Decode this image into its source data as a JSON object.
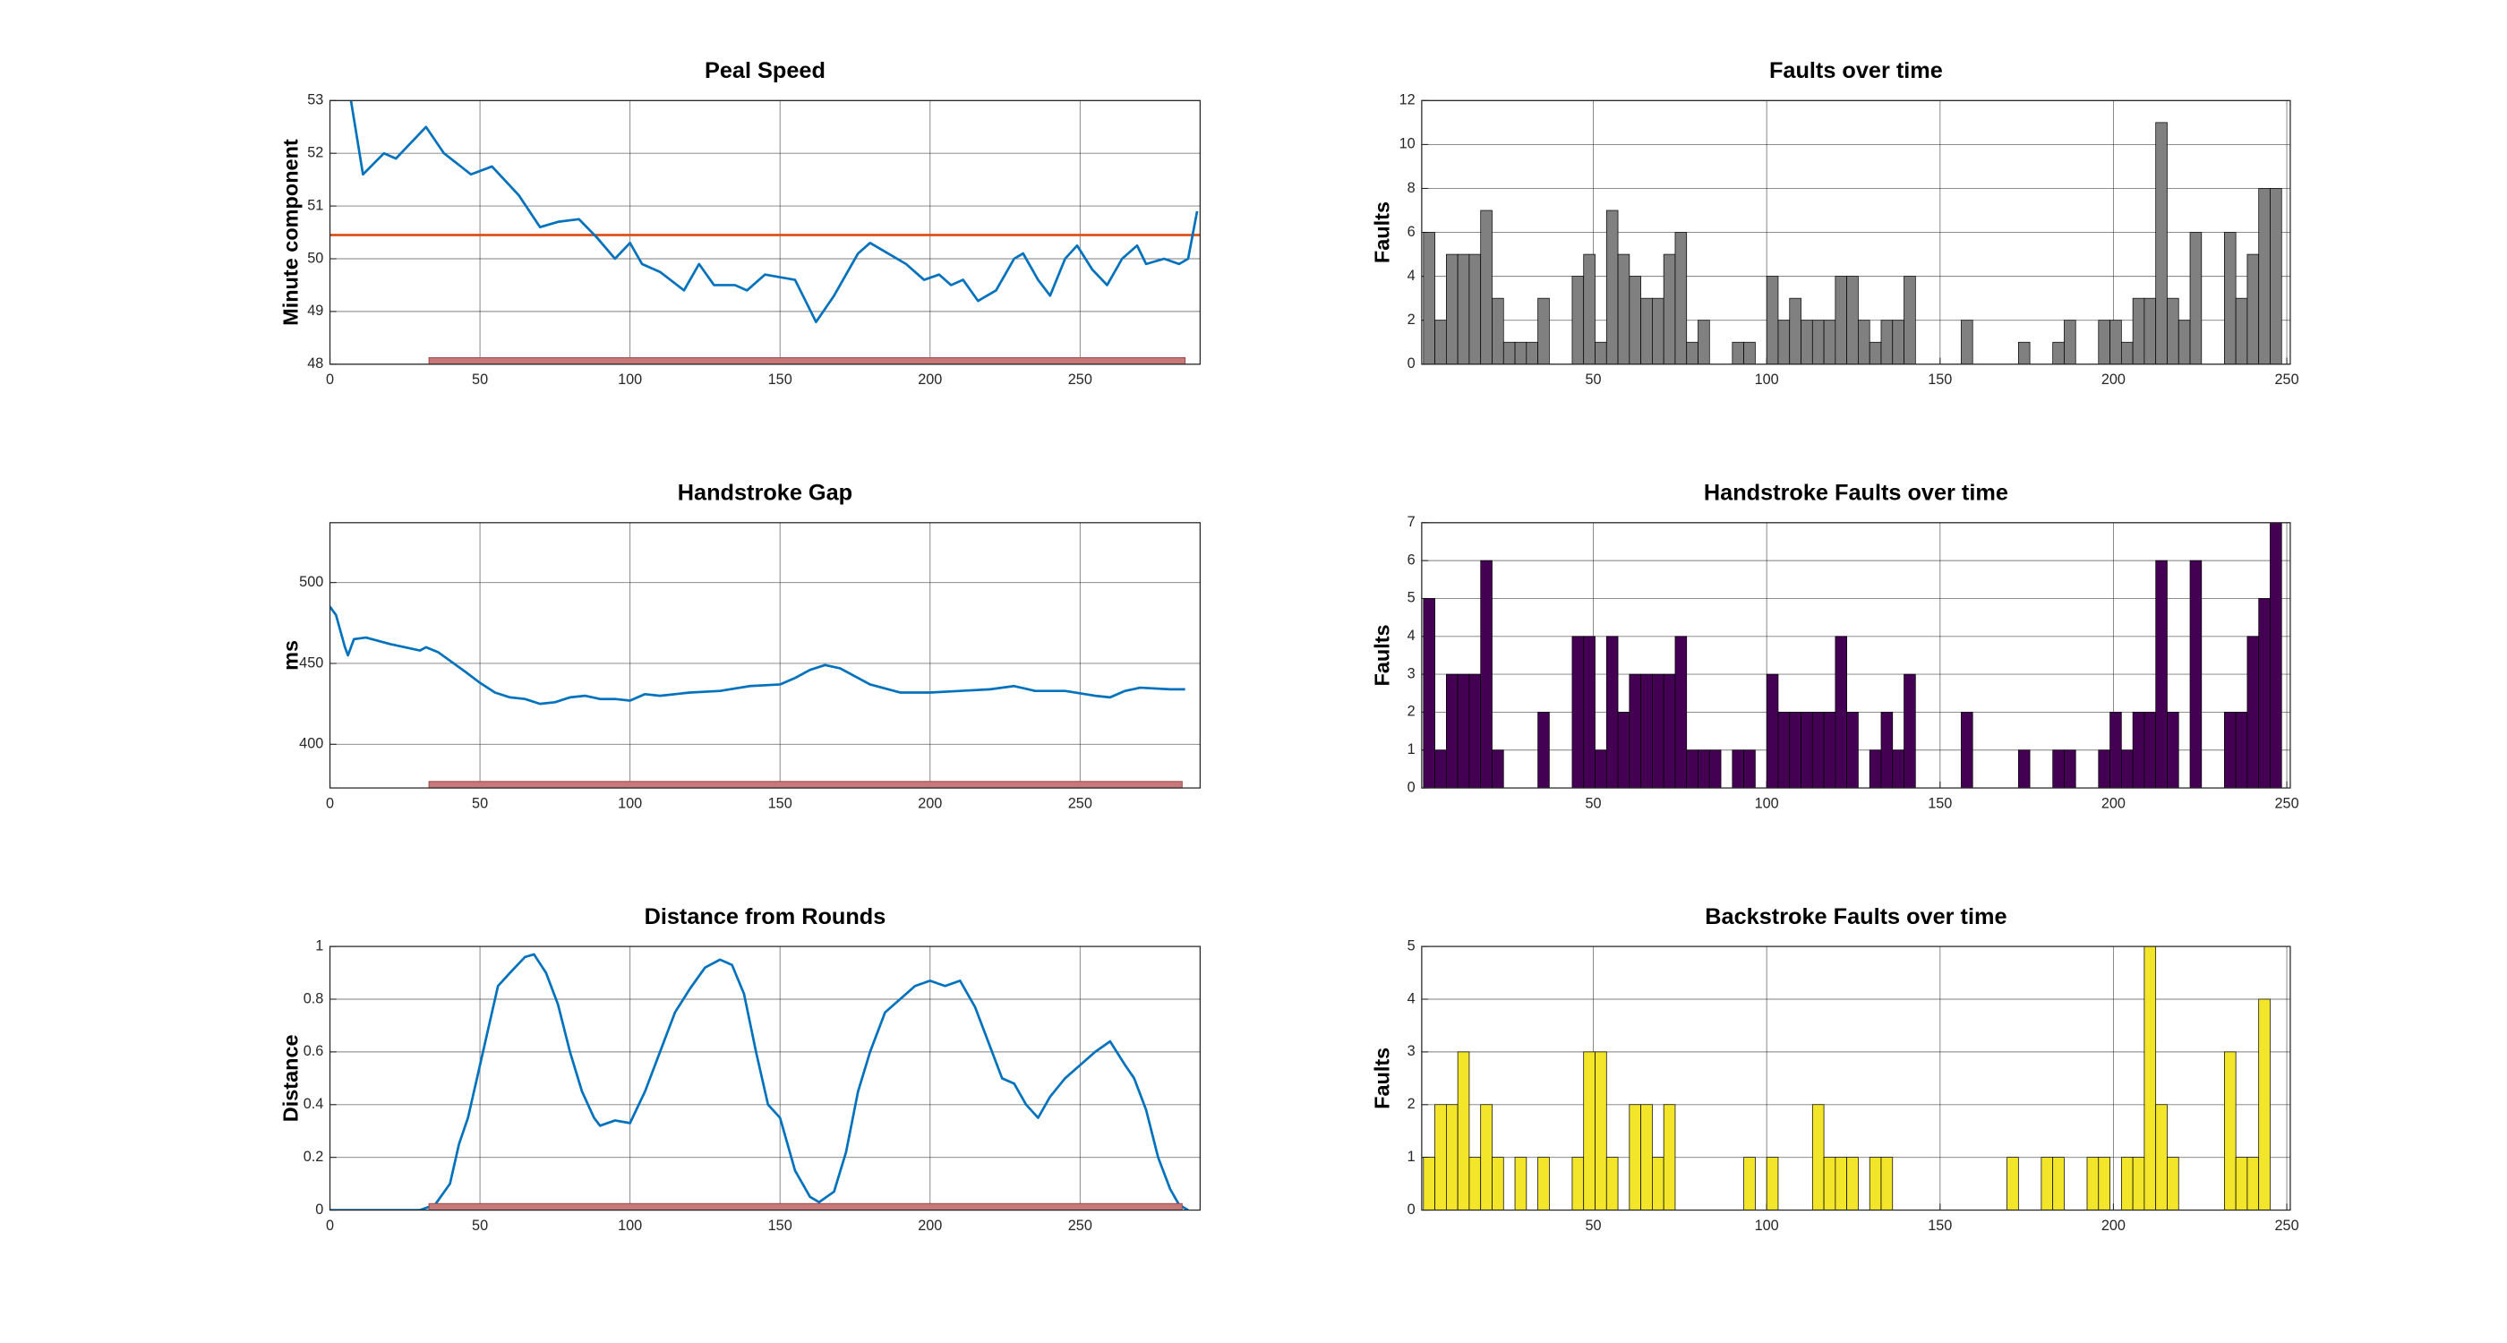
{
  "chart_data": [
    {
      "type": "line",
      "title": "Peal Speed",
      "ylabel": "Minute component",
      "color": "#0072bd",
      "x": [
        7,
        11,
        18,
        22,
        32,
        38,
        47,
        54,
        63,
        70,
        76,
        83,
        89,
        95,
        100,
        104,
        110,
        118,
        123,
        128,
        135,
        139,
        145,
        155,
        162,
        168,
        176,
        180,
        186,
        192,
        198,
        203,
        207,
        211,
        216,
        222,
        228,
        231,
        236,
        240,
        245,
        249,
        254,
        259,
        264,
        269,
        272,
        278,
        283,
        286,
        289
      ],
      "values": [
        53,
        51.6,
        52,
        51.9,
        52.5,
        52,
        51.6,
        51.75,
        51.2,
        50.6,
        50.7,
        50.75,
        50.4,
        50,
        50.3,
        49.9,
        49.75,
        49.4,
        49.9,
        49.5,
        49.5,
        49.4,
        49.7,
        49.6,
        48.8,
        49.3,
        50.1,
        50.3,
        50.1,
        49.9,
        49.6,
        49.7,
        49.5,
        49.6,
        49.2,
        49.4,
        50,
        50.1,
        49.6,
        49.3,
        50,
        50.25,
        49.8,
        49.5,
        50,
        50.25,
        49.9,
        50,
        49.9,
        50,
        50.9
      ],
      "reference_line": 50.45,
      "reference_color": "#d95319",
      "highlight_range": [
        33,
        285
      ],
      "highlight_color": "#c87878",
      "xlim": [
        0,
        290
      ],
      "xticks": [
        0,
        50,
        100,
        150,
        200,
        250
      ],
      "ylim": [
        48,
        53
      ],
      "yticks": [
        48,
        49,
        50,
        51,
        52,
        53
      ],
      "grid": true
    },
    {
      "type": "histogram",
      "title": "Faults over time",
      "ylabel": "Faults",
      "color": "#808080",
      "bins": [
        1,
        4.3,
        7.6,
        10.9,
        14.2,
        17.5,
        20.8,
        24.1,
        27.4,
        30.7,
        34,
        37.3,
        40.6,
        43.9,
        47.2,
        50.5,
        53.8,
        57.1,
        60.4,
        63.7,
        67,
        70.3,
        73.6,
        76.9,
        80.2,
        83.5,
        86.8,
        90.1,
        93.4,
        96.7,
        100,
        103.3,
        106.6,
        109.9,
        113.2,
        116.5,
        119.8,
        123.1,
        126.4,
        129.7,
        133,
        136.3,
        139.6,
        142.9,
        146.2,
        149.5,
        152.8,
        156.1,
        159.4,
        162.7,
        166,
        169.3,
        172.6,
        175.9,
        179.2,
        182.5,
        185.8,
        189.1,
        192.4,
        195.7,
        199,
        202.3,
        205.6,
        208.9,
        212.2,
        215.5,
        218.8,
        222.1,
        225.4,
        228.7,
        232,
        235.3,
        238.6,
        241.9,
        245.2,
        248.5
      ],
      "values": [
        6,
        2,
        5,
        5,
        5,
        7,
        3,
        1,
        1,
        1,
        3,
        0,
        0,
        4,
        5,
        1,
        7,
        5,
        4,
        3,
        3,
        5,
        6,
        1,
        2,
        0,
        0,
        1,
        1,
        0,
        4,
        2,
        3,
        2,
        2,
        2,
        4,
        4,
        2,
        1,
        2,
        2,
        4,
        0,
        0,
        0,
        0,
        2,
        0,
        0,
        0,
        0,
        1,
        0,
        0,
        1,
        2,
        0,
        0,
        2,
        2,
        1,
        3,
        3,
        11,
        3,
        2,
        6,
        0,
        0,
        6,
        3,
        5,
        8,
        8
      ],
      "xlim": [
        0.5,
        251
      ],
      "xticks": [
        50,
        100,
        150,
        200,
        250
      ],
      "ylim": [
        0,
        12
      ],
      "yticks": [
        0,
        2,
        4,
        6,
        8,
        10,
        12
      ],
      "grid": true
    },
    {
      "type": "line",
      "title": "Handstroke Gap",
      "ylabel": "ms",
      "color": "#0072bd",
      "x": [
        0,
        2,
        5,
        6,
        8,
        12,
        20,
        25,
        30,
        32,
        36,
        45,
        50,
        55,
        60,
        65,
        70,
        75,
        80,
        85,
        90,
        95,
        100,
        105,
        110,
        120,
        130,
        140,
        150,
        155,
        160,
        165,
        170,
        175,
        180,
        190,
        200,
        210,
        220,
        228,
        235,
        245,
        255,
        260,
        265,
        270,
        280,
        285
      ],
      "values": [
        485,
        480,
        460,
        455,
        465,
        466,
        462,
        460,
        458,
        460,
        457,
        445,
        438,
        432,
        429,
        428,
        425,
        426,
        429,
        430,
        428,
        428,
        427,
        431,
        430,
        432,
        433,
        436,
        437,
        441,
        446,
        449,
        447,
        442,
        437,
        432,
        432,
        433,
        434,
        436,
        433,
        433,
        430,
        429,
        433,
        435,
        434,
        434
      ],
      "highlight_range": [
        33,
        284
      ],
      "highlight_color": "#c87878",
      "xlim": [
        0,
        290
      ],
      "xticks": [
        0,
        50,
        100,
        150,
        200,
        250
      ],
      "ylim": [
        373,
        537
      ],
      "yticks": [
        400,
        450,
        500
      ],
      "grid": true
    },
    {
      "type": "histogram",
      "title": "Handstroke Faults over time",
      "ylabel": "Faults",
      "color": "#440154",
      "bins": [
        1,
        4.3,
        7.6,
        10.9,
        14.2,
        17.5,
        20.8,
        24.1,
        27.4,
        30.7,
        34,
        37.3,
        40.6,
        43.9,
        47.2,
        50.5,
        53.8,
        57.1,
        60.4,
        63.7,
        67,
        70.3,
        73.6,
        76.9,
        80.2,
        83.5,
        86.8,
        90.1,
        93.4,
        96.7,
        100,
        103.3,
        106.6,
        109.9,
        113.2,
        116.5,
        119.8,
        123.1,
        126.4,
        129.7,
        133,
        136.3,
        139.6,
        142.9,
        146.2,
        149.5,
        152.8,
        156.1,
        159.4,
        162.7,
        166,
        169.3,
        172.6,
        175.9,
        179.2,
        182.5,
        185.8,
        189.1,
        192.4,
        195.7,
        199,
        202.3,
        205.6,
        208.9,
        212.2,
        215.5,
        218.8,
        222.1,
        225.4,
        228.7,
        232,
        235.3,
        238.6,
        241.9,
        245.2,
        248.5
      ],
      "values": [
        5,
        1,
        3,
        3,
        3,
        6,
        1,
        0,
        0,
        0,
        2,
        0,
        0,
        4,
        4,
        1,
        4,
        2,
        3,
        3,
        3,
        3,
        4,
        1,
        1,
        1,
        0,
        1,
        1,
        0,
        3,
        2,
        2,
        2,
        2,
        2,
        4,
        2,
        0,
        1,
        2,
        1,
        3,
        0,
        0,
        0,
        0,
        2,
        0,
        0,
        0,
        0,
        1,
        0,
        0,
        1,
        1,
        0,
        0,
        1,
        2,
        1,
        2,
        2,
        6,
        2,
        0,
        6,
        0,
        0,
        2,
        2,
        4,
        5,
        7
      ],
      "xlim": [
        0.5,
        251
      ],
      "xticks": [
        50,
        100,
        150,
        200,
        250
      ],
      "ylim": [
        0,
        7
      ],
      "yticks": [
        0,
        1,
        2,
        3,
        4,
        5,
        6,
        7
      ],
      "grid": true
    },
    {
      "type": "line",
      "title": "Distance from Rounds",
      "ylabel": "Distance",
      "color": "#0072bd",
      "x": [
        0,
        30,
        35,
        40,
        43,
        46,
        50,
        53,
        56,
        60,
        65,
        68,
        72,
        76,
        80,
        84,
        88,
        90,
        95,
        100,
        105,
        110,
        115,
        120,
        125,
        130,
        134,
        138,
        142,
        146,
        150,
        155,
        160,
        163,
        168,
        172,
        176,
        180,
        185,
        190,
        195,
        200,
        205,
        210,
        215,
        220,
        224,
        228,
        232,
        236,
        240,
        245,
        250,
        255,
        260,
        265,
        268,
        272,
        276,
        280,
        283,
        286
      ],
      "values": [
        0,
        0,
        0.02,
        0.1,
        0.25,
        0.35,
        0.55,
        0.7,
        0.85,
        0.9,
        0.96,
        0.97,
        0.9,
        0.78,
        0.6,
        0.45,
        0.35,
        0.32,
        0.34,
        0.33,
        0.45,
        0.6,
        0.75,
        0.84,
        0.92,
        0.95,
        0.93,
        0.82,
        0.6,
        0.4,
        0.35,
        0.15,
        0.05,
        0.03,
        0.07,
        0.22,
        0.45,
        0.6,
        0.75,
        0.8,
        0.85,
        0.87,
        0.85,
        0.87,
        0.77,
        0.62,
        0.5,
        0.48,
        0.4,
        0.35,
        0.43,
        0.5,
        0.55,
        0.6,
        0.64,
        0.55,
        0.5,
        0.38,
        0.2,
        0.08,
        0.02,
        0
      ],
      "highlight_range": [
        33,
        284
      ],
      "highlight_color": "#c87878",
      "xlim": [
        0,
        290
      ],
      "xticks": [
        0,
        50,
        100,
        150,
        200,
        250
      ],
      "ylim": [
        0,
        1
      ],
      "yticks": [
        0,
        0.2,
        0.4,
        0.6,
        0.8,
        1
      ],
      "grid": true
    },
    {
      "type": "histogram",
      "title": "Backstroke Faults over time",
      "ylabel": "Faults",
      "color": "#f2e52a",
      "bins": [
        1,
        4.3,
        7.6,
        10.9,
        14.2,
        17.5,
        20.8,
        24.1,
        27.4,
        30.7,
        34,
        37.3,
        40.6,
        43.9,
        47.2,
        50.5,
        53.8,
        57.1,
        60.4,
        63.7,
        67,
        70.3,
        73.6,
        76.9,
        80.2,
        83.5,
        86.8,
        90.1,
        93.4,
        96.7,
        100,
        103.3,
        106.6,
        109.9,
        113.2,
        116.5,
        119.8,
        123.1,
        126.4,
        129.7,
        133,
        136.3,
        139.6,
        142.9,
        146.2,
        149.5,
        152.8,
        156.1,
        159.4,
        162.7,
        166,
        169.3,
        172.6,
        175.9,
        179.2,
        182.5,
        185.8,
        189.1,
        192.4,
        195.7,
        199,
        202.3,
        205.6,
        208.9,
        212.2,
        215.5,
        218.8,
        222.1,
        225.4,
        228.7,
        232,
        235.3,
        238.6,
        241.9,
        245.2,
        248.5
      ],
      "values": [
        1,
        2,
        2,
        3,
        1,
        2,
        1,
        0,
        1,
        0,
        1,
        0,
        0,
        1,
        3,
        3,
        1,
        0,
        2,
        2,
        1,
        2,
        0,
        0,
        0,
        0,
        0,
        0,
        1,
        0,
        1,
        0,
        0,
        0,
        2,
        1,
        1,
        1,
        0,
        1,
        1,
        0,
        0,
        0,
        0,
        0,
        0,
        0,
        0,
        0,
        0,
        1,
        0,
        0,
        1,
        1,
        0,
        0,
        1,
        1,
        0,
        1,
        1,
        5,
        2,
        1,
        0,
        0,
        0,
        0,
        3,
        1,
        1,
        4,
        0
      ],
      "xlim": [
        0.5,
        251
      ],
      "xticks": [
        50,
        100,
        150,
        200,
        250
      ],
      "ylim": [
        0,
        5
      ],
      "yticks": [
        0,
        1,
        2,
        3,
        4,
        5
      ],
      "grid": true
    }
  ]
}
